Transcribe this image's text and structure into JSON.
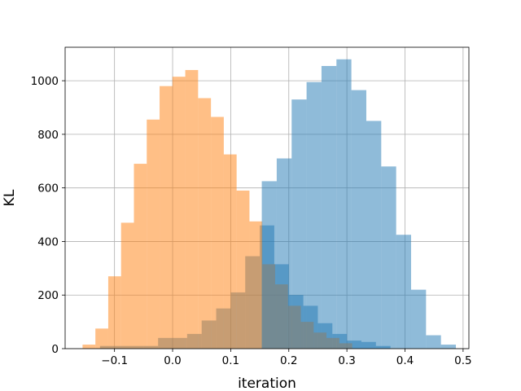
{
  "chart_data": {
    "type": "bar",
    "title": "",
    "xlabel": "iteration",
    "ylabel": "KL",
    "xlim": [
      -0.185,
      0.51
    ],
    "ylim": [
      0,
      1125
    ],
    "grid": true,
    "x_ticks": [
      -0.1,
      0.0,
      0.1,
      0.2,
      0.3,
      0.4,
      0.5
    ],
    "x_tick_labels": [
      "−0.1",
      "0.0",
      "0.1",
      "0.2",
      "0.3",
      "0.4",
      "0.5"
    ],
    "y_ticks": [
      0,
      200,
      400,
      600,
      800,
      1000
    ],
    "y_tick_labels": [
      "0",
      "200",
      "400",
      "600",
      "800",
      "1000"
    ],
    "series": [
      {
        "color": "#1f77b4",
        "alpha": 0.5,
        "bin_width": 0.025,
        "bin_start": -0.125,
        "values": [
          10,
          10,
          10,
          10,
          40,
          40,
          55,
          105,
          150,
          210,
          345,
          460,
          315,
          200,
          160,
          95,
          55,
          30,
          25,
          10
        ]
      },
      {
        "color": "#ff7f0e",
        "alpha": 0.5,
        "bin_width": 0.0221,
        "bin_start": -0.155,
        "values": [
          15,
          75,
          270,
          470,
          690,
          855,
          980,
          1015,
          1040,
          935,
          865,
          725,
          590,
          475,
          315,
          240,
          160,
          100,
          60,
          40,
          20
        ]
      },
      {
        "color": "#1f77b4",
        "alpha": 0.5,
        "bin_width": 0.0257,
        "bin_start": 0.1535,
        "values": [
          625,
          710,
          930,
          995,
          1055,
          1080,
          965,
          850,
          680,
          425,
          220,
          50,
          15
        ]
      }
    ]
  }
}
